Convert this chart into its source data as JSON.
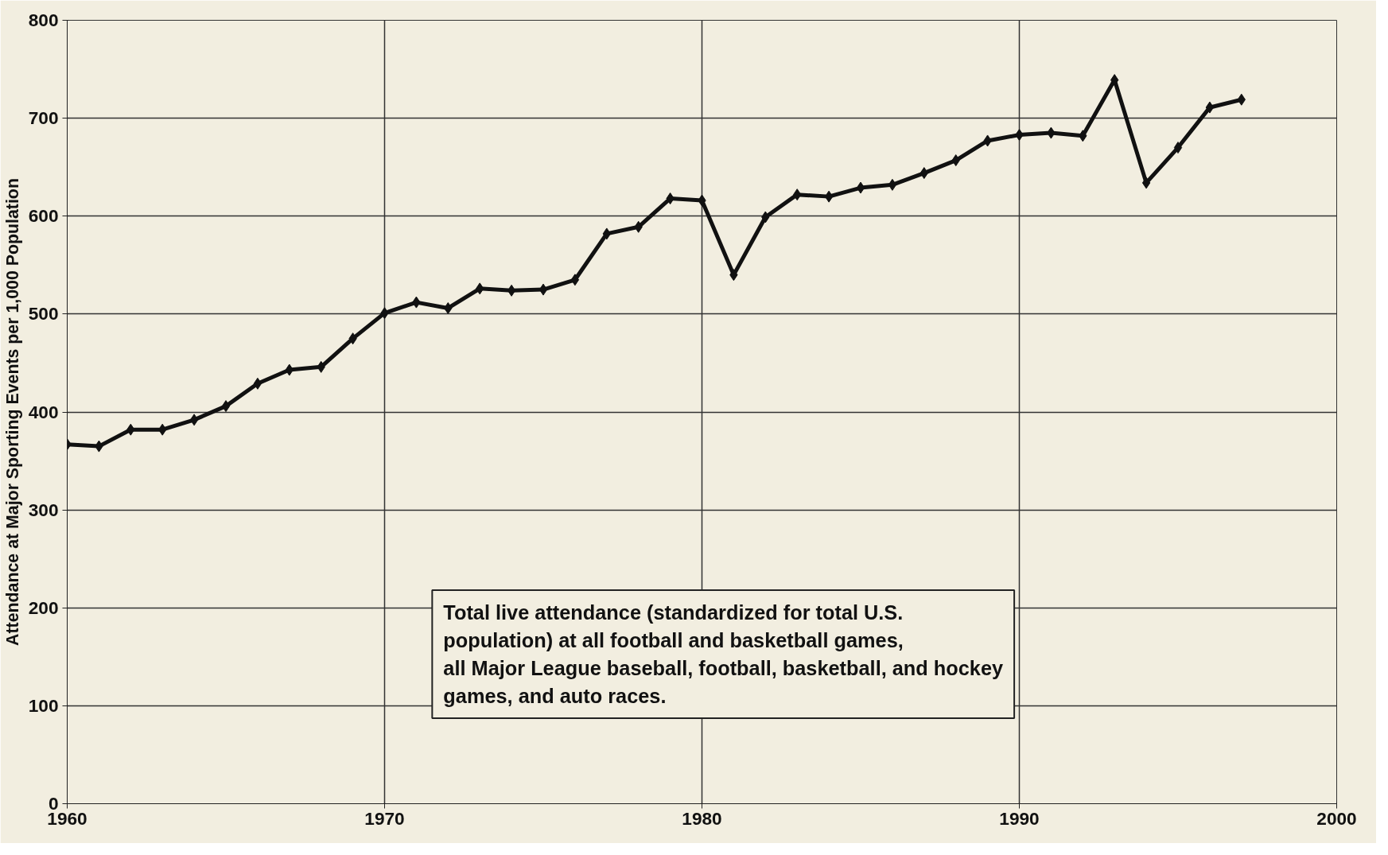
{
  "chart_data": {
    "type": "line",
    "ylabel": "Attendance at Major Sporting Events per 1,000 Population",
    "x": [
      1960,
      1961,
      1962,
      1963,
      1964,
      1965,
      1966,
      1967,
      1968,
      1969,
      1970,
      1971,
      1972,
      1973,
      1974,
      1975,
      1976,
      1977,
      1978,
      1979,
      1980,
      1981,
      1982,
      1983,
      1984,
      1985,
      1986,
      1987,
      1988,
      1989,
      1990,
      1991,
      1992,
      1993,
      1994,
      1995,
      1996,
      1997
    ],
    "series": [
      {
        "color": "#111111",
        "values": [
          367,
          365,
          382,
          382,
          392,
          406,
          429,
          443,
          446,
          475,
          501,
          512,
          506,
          526,
          524,
          525,
          535,
          582,
          589,
          618,
          616,
          540,
          599,
          622,
          620,
          629,
          632,
          644,
          657,
          677,
          683,
          685,
          682,
          739,
          634,
          670,
          711,
          719
        ]
      }
    ],
    "xlim": [
      1960,
      2000
    ],
    "xticks": [
      1960,
      1970,
      1980,
      1990,
      2000
    ],
    "ylim": [
      0,
      800
    ],
    "yticks": [
      0,
      100,
      200,
      300,
      400,
      500,
      600,
      700,
      800
    ],
    "grid": true,
    "marker": "diamond",
    "line_style": "solid",
    "annotations": [
      "Total live attendance (standardized for total U.S.\npopulation) at all football and basketball games,\nall Major League baseball, football, basketball, and hockey\ngames, and auto races."
    ]
  }
}
